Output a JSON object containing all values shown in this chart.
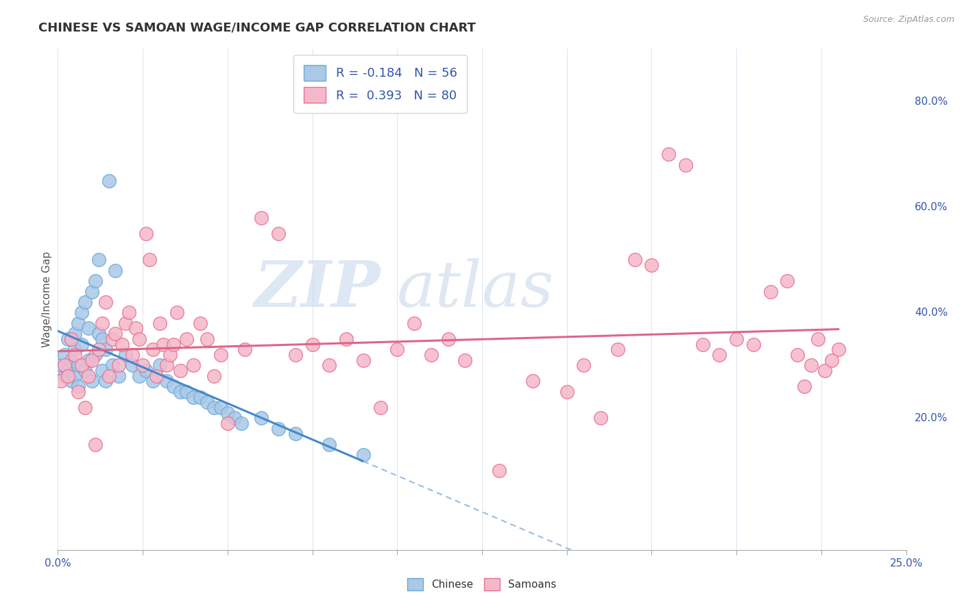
{
  "title": "CHINESE VS SAMOAN WAGE/INCOME GAP CORRELATION CHART",
  "source": "Source: ZipAtlas.com",
  "ylabel": "Wage/Income Gap",
  "right_yticks": [
    0.2,
    0.4,
    0.6,
    0.8
  ],
  "right_yticklabels": [
    "20.0%",
    "40.0%",
    "60.0%",
    "80.0%"
  ],
  "legend_chinese": "Chinese",
  "legend_samoans": "Samoans",
  "R_chinese": -0.184,
  "N_chinese": 56,
  "R_samoans": 0.393,
  "N_samoans": 80,
  "chinese_color": "#aac8e8",
  "chinese_edge_color": "#6aaad4",
  "samoan_color": "#f5b8ca",
  "samoan_edge_color": "#e87090",
  "chinese_line_color": "#4488cc",
  "samoan_line_color": "#dd6688",
  "dashed_line_color": "#99bbdd",
  "watermark_zip": "ZIP",
  "watermark_atlas": "atlas",
  "background_color": "#ffffff",
  "grid_color": "#d8e4f0",
  "xlim": [
    0.0,
    0.25
  ],
  "ylim": [
    -0.05,
    0.9
  ],
  "xmin_label": "0.0%",
  "xmax_label": "25.0%",
  "title_fontsize": 13,
  "source_fontsize": 9,
  "chinese_x": [
    0.001,
    0.002,
    0.002,
    0.003,
    0.003,
    0.004,
    0.004,
    0.005,
    0.005,
    0.005,
    0.006,
    0.006,
    0.006,
    0.007,
    0.007,
    0.008,
    0.008,
    0.009,
    0.009,
    0.01,
    0.01,
    0.011,
    0.011,
    0.012,
    0.012,
    0.013,
    0.013,
    0.014,
    0.014,
    0.015,
    0.016,
    0.017,
    0.018,
    0.02,
    0.022,
    0.024,
    0.026,
    0.028,
    0.03,
    0.032,
    0.034,
    0.036,
    0.038,
    0.04,
    0.042,
    0.044,
    0.046,
    0.048,
    0.05,
    0.052,
    0.054,
    0.06,
    0.065,
    0.07,
    0.08,
    0.09
  ],
  "chinese_y": [
    0.3,
    0.32,
    0.28,
    0.35,
    0.29,
    0.31,
    0.27,
    0.36,
    0.33,
    0.28,
    0.38,
    0.3,
    0.26,
    0.4,
    0.34,
    0.42,
    0.29,
    0.37,
    0.31,
    0.44,
    0.27,
    0.46,
    0.32,
    0.5,
    0.36,
    0.35,
    0.29,
    0.33,
    0.27,
    0.65,
    0.3,
    0.48,
    0.28,
    0.32,
    0.3,
    0.28,
    0.29,
    0.27,
    0.3,
    0.27,
    0.26,
    0.25,
    0.25,
    0.24,
    0.24,
    0.23,
    0.22,
    0.22,
    0.21,
    0.2,
    0.19,
    0.2,
    0.18,
    0.17,
    0.15,
    0.13
  ],
  "samoan_x": [
    0.001,
    0.002,
    0.003,
    0.004,
    0.005,
    0.006,
    0.007,
    0.008,
    0.009,
    0.01,
    0.011,
    0.012,
    0.013,
    0.014,
    0.015,
    0.016,
    0.017,
    0.018,
    0.019,
    0.02,
    0.021,
    0.022,
    0.023,
    0.024,
    0.025,
    0.026,
    0.027,
    0.028,
    0.029,
    0.03,
    0.031,
    0.032,
    0.033,
    0.034,
    0.035,
    0.036,
    0.038,
    0.04,
    0.042,
    0.044,
    0.046,
    0.048,
    0.05,
    0.055,
    0.06,
    0.065,
    0.07,
    0.075,
    0.08,
    0.085,
    0.09,
    0.095,
    0.1,
    0.105,
    0.11,
    0.115,
    0.12,
    0.13,
    0.14,
    0.15,
    0.155,
    0.16,
    0.165,
    0.17,
    0.175,
    0.18,
    0.185,
    0.19,
    0.195,
    0.2,
    0.205,
    0.21,
    0.215,
    0.218,
    0.22,
    0.222,
    0.224,
    0.226,
    0.228,
    0.23
  ],
  "samoan_y": [
    0.27,
    0.3,
    0.28,
    0.35,
    0.32,
    0.25,
    0.3,
    0.22,
    0.28,
    0.31,
    0.15,
    0.33,
    0.38,
    0.42,
    0.28,
    0.35,
    0.36,
    0.3,
    0.34,
    0.38,
    0.4,
    0.32,
    0.37,
    0.35,
    0.3,
    0.55,
    0.5,
    0.33,
    0.28,
    0.38,
    0.34,
    0.3,
    0.32,
    0.34,
    0.4,
    0.29,
    0.35,
    0.3,
    0.38,
    0.35,
    0.28,
    0.32,
    0.19,
    0.33,
    0.58,
    0.55,
    0.32,
    0.34,
    0.3,
    0.35,
    0.31,
    0.22,
    0.33,
    0.38,
    0.32,
    0.35,
    0.31,
    0.1,
    0.27,
    0.25,
    0.3,
    0.2,
    0.33,
    0.5,
    0.49,
    0.7,
    0.68,
    0.34,
    0.32,
    0.35,
    0.34,
    0.44,
    0.46,
    0.32,
    0.26,
    0.3,
    0.35,
    0.29,
    0.31,
    0.33
  ]
}
